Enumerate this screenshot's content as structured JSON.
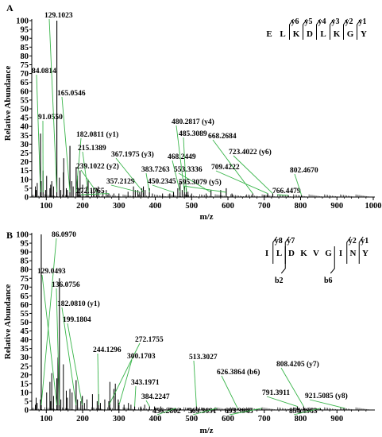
{
  "chart_data": [
    {
      "type": "bar",
      "panel": "A",
      "xlabel": "m/z",
      "ylabel": "Relative Abundance",
      "xlim": [
        60,
        1000
      ],
      "ylim": [
        0,
        100
      ],
      "xticks": [
        100,
        200,
        300,
        400,
        500,
        600,
        700,
        800,
        900,
        1000
      ],
      "yticks": [
        0,
        5,
        10,
        15,
        20,
        25,
        30,
        35,
        40,
        45,
        50,
        55,
        60,
        65,
        70,
        75,
        80,
        85,
        90,
        95,
        100
      ],
      "sequence": {
        "residues": [
          "E",
          "L",
          "K",
          "D",
          "L",
          "K",
          "G",
          "Y"
        ],
        "y_ions": [
          "y6",
          "y5",
          "y4",
          "y3",
          "y2",
          "y1"
        ],
        "b_ions": []
      },
      "peaks": [
        {
          "mz": 84.0814,
          "abundance": 36,
          "label": "84.0814"
        },
        {
          "mz": 91.055,
          "abundance": 15,
          "label": "91.0550"
        },
        {
          "mz": 129.1023,
          "abundance": 100,
          "label": "129.1023"
        },
        {
          "mz": 165.0546,
          "abundance": 29,
          "label": "165.0546"
        },
        {
          "mz": 182.0811,
          "abundance": 17,
          "label": "182.0811 (y1)"
        },
        {
          "mz": 215.1389,
          "abundance": 10,
          "label": "215.1389"
        },
        {
          "mz": 239.1022,
          "abundance": 5,
          "label": "239.1022 (y2)"
        },
        {
          "mz": 272.1765,
          "abundance": 2,
          "label": "272.1765"
        },
        {
          "mz": 357.2129,
          "abundance": 3,
          "label": "357.2129"
        },
        {
          "mz": 367.1975,
          "abundance": 6,
          "label": "367.1975 (y3)"
        },
        {
          "mz": 383.7263,
          "abundance": 5,
          "label": "383.7263"
        },
        {
          "mz": 450.2345,
          "abundance": 3,
          "label": "450.2345"
        },
        {
          "mz": 468.2449,
          "abundance": 9,
          "label": "468.2449"
        },
        {
          "mz": 480.2817,
          "abundance": 6,
          "label": "480.2817 (y4)"
        },
        {
          "mz": 485.3089,
          "abundance": 5,
          "label": "485.3089"
        },
        {
          "mz": 553.3336,
          "abundance": 4,
          "label": "553.3336"
        },
        {
          "mz": 595.3079,
          "abundance": 5,
          "label": "595.3079 (y5)"
        },
        {
          "mz": 668.2684,
          "abundance": 2,
          "label": "668.2684"
        },
        {
          "mz": 709.4222,
          "abundance": 2,
          "label": "709.4222"
        },
        {
          "mz": 723.4022,
          "abundance": 2,
          "label": "723.4022 (y6)"
        },
        {
          "mz": 766.4479,
          "abundance": 1,
          "label": "766.4479"
        },
        {
          "mz": 802.467,
          "abundance": 1,
          "label": "802.4670"
        }
      ],
      "minor_peaks": [
        {
          "mz": 70,
          "abundance": 6
        },
        {
          "mz": 72,
          "abundance": 4
        },
        {
          "mz": 75,
          "abundance": 8
        },
        {
          "mz": 86,
          "abundance": 9
        },
        {
          "mz": 98,
          "abundance": 4
        },
        {
          "mz": 101,
          "abundance": 12
        },
        {
          "mz": 110,
          "abundance": 5
        },
        {
          "mz": 112,
          "abundance": 7
        },
        {
          "mz": 115,
          "abundance": 9
        },
        {
          "mz": 120,
          "abundance": 6
        },
        {
          "mz": 136,
          "abundance": 11
        },
        {
          "mz": 140,
          "abundance": 4
        },
        {
          "mz": 147,
          "abundance": 14
        },
        {
          "mz": 148,
          "abundance": 22
        },
        {
          "mz": 155,
          "abundance": 5
        },
        {
          "mz": 158,
          "abundance": 4
        },
        {
          "mz": 170,
          "abundance": 9
        },
        {
          "mz": 174,
          "abundance": 6
        },
        {
          "mz": 186,
          "abundance": 12
        },
        {
          "mz": 189,
          "abundance": 5
        },
        {
          "mz": 193,
          "abundance": 15
        },
        {
          "mz": 200,
          "abundance": 7
        },
        {
          "mz": 211,
          "abundance": 6
        },
        {
          "mz": 225,
          "abundance": 4
        },
        {
          "mz": 230,
          "abundance": 5
        },
        {
          "mz": 243,
          "abundance": 6
        },
        {
          "mz": 256,
          "abundance": 3
        },
        {
          "mz": 265,
          "abundance": 4
        },
        {
          "mz": 286,
          "abundance": 2
        },
        {
          "mz": 300,
          "abundance": 2
        },
        {
          "mz": 325,
          "abundance": 3
        },
        {
          "mz": 340,
          "abundance": 6
        },
        {
          "mz": 345,
          "abundance": 4
        },
        {
          "mz": 352,
          "abundance": 4
        },
        {
          "mz": 363,
          "abundance": 5
        },
        {
          "mz": 372,
          "abundance": 4
        },
        {
          "mz": 392,
          "abundance": 2
        },
        {
          "mz": 420,
          "abundance": 2
        },
        {
          "mz": 440,
          "abundance": 2
        },
        {
          "mz": 462,
          "abundance": 5
        },
        {
          "mz": 474,
          "abundance": 4
        },
        {
          "mz": 490,
          "abundance": 3
        },
        {
          "mz": 500,
          "abundance": 2
        },
        {
          "mz": 540,
          "abundance": 2
        },
        {
          "mz": 580,
          "abundance": 4
        },
        {
          "mz": 611,
          "abundance": 2
        },
        {
          "mz": 650,
          "abundance": 1
        },
        {
          "mz": 700,
          "abundance": 1
        }
      ]
    },
    {
      "type": "bar",
      "panel": "B",
      "xlabel": "m/z",
      "ylabel": "Relative Abundance",
      "xlim": [
        60,
        1000
      ],
      "ylim": [
        0,
        100
      ],
      "xticks": [
        100,
        200,
        300,
        400,
        500,
        600,
        700,
        800,
        900
      ],
      "yticks": [
        0,
        5,
        10,
        15,
        20,
        25,
        30,
        35,
        40,
        45,
        50,
        55,
        60,
        65,
        70,
        75,
        80,
        85,
        90,
        95,
        100
      ],
      "sequence": {
        "residues": [
          "I",
          "L",
          "D",
          "K",
          "V",
          "G",
          "I",
          "N",
          "Y"
        ],
        "y_ions": [
          "y8",
          "y7",
          "y2",
          "y1"
        ],
        "b_ions": [
          "b2",
          "b6"
        ]
      },
      "peaks": [
        {
          "mz": 86.097,
          "abundance": 100,
          "label": "86.0970"
        },
        {
          "mz": 129.0493,
          "abundance": 18,
          "label": "129.0493"
        },
        {
          "mz": 136.0756,
          "abundance": 75,
          "label": "136.0756"
        },
        {
          "mz": 182.081,
          "abundance": 17,
          "label": "182.0810 (y1)"
        },
        {
          "mz": 199.1804,
          "abundance": 8,
          "label": "199.1804"
        },
        {
          "mz": 244.1296,
          "abundance": 9,
          "label": "244.1296"
        },
        {
          "mz": 272.1755,
          "abundance": 5,
          "label": "272.1755"
        },
        {
          "mz": 300.1703,
          "abundance": 4,
          "label": "300.1703"
        },
        {
          "mz": 343.1971,
          "abundance": 2,
          "label": "343.1971"
        },
        {
          "mz": 384.2247,
          "abundance": 2,
          "label": "384.2247"
        },
        {
          "mz": 456.2802,
          "abundance": 1,
          "label": "456.2802"
        },
        {
          "mz": 513.3027,
          "abundance": 2,
          "label": "513.3027"
        },
        {
          "mz": 569.3691,
          "abundance": 1,
          "label": "569.3691"
        },
        {
          "mz": 626.3864,
          "abundance": 1,
          "label": "626.3864 (b6)"
        },
        {
          "mz": 693.3945,
          "abundance": 1,
          "label": "693.3945"
        },
        {
          "mz": 791.3911,
          "abundance": 2,
          "label": "791.3911"
        },
        {
          "mz": 808.4205,
          "abundance": 2,
          "label": "808.4205 (y7)"
        },
        {
          "mz": 854.4963,
          "abundance": 1,
          "label": "854.4963"
        },
        {
          "mz": 921.5085,
          "abundance": 1,
          "label": "921.5085 (y8)"
        }
      ],
      "minor_peaks": [
        {
          "mz": 70,
          "abundance": 3
        },
        {
          "mz": 72,
          "abundance": 7
        },
        {
          "mz": 75,
          "abundance": 4
        },
        {
          "mz": 84,
          "abundance": 6
        },
        {
          "mz": 101,
          "abundance": 10
        },
        {
          "mz": 110,
          "abundance": 16
        },
        {
          "mz": 112,
          "abundance": 5
        },
        {
          "mz": 115,
          "abundance": 21
        },
        {
          "mz": 120,
          "abundance": 8
        },
        {
          "mz": 132,
          "abundance": 30
        },
        {
          "mz": 140,
          "abundance": 6
        },
        {
          "mz": 147,
          "abundance": 26
        },
        {
          "mz": 155,
          "abundance": 11
        },
        {
          "mz": 158,
          "abundance": 7
        },
        {
          "mz": 165,
          "abundance": 12
        },
        {
          "mz": 171,
          "abundance": 10
        },
        {
          "mz": 186,
          "abundance": 6
        },
        {
          "mz": 195,
          "abundance": 5
        },
        {
          "mz": 205,
          "abundance": 4
        },
        {
          "mz": 212,
          "abundance": 6
        },
        {
          "mz": 227,
          "abundance": 9
        },
        {
          "mz": 240,
          "abundance": 5
        },
        {
          "mz": 249,
          "abundance": 4
        },
        {
          "mz": 261,
          "abundance": 6
        },
        {
          "mz": 275,
          "abundance": 16
        },
        {
          "mz": 286,
          "abundance": 12
        },
        {
          "mz": 290,
          "abundance": 15
        },
        {
          "mz": 298,
          "abundance": 6
        },
        {
          "mz": 314,
          "abundance": 3
        },
        {
          "mz": 326,
          "abundance": 4
        },
        {
          "mz": 333,
          "abundance": 3
        },
        {
          "mz": 360,
          "abundance": 2
        },
        {
          "mz": 371,
          "abundance": 3
        },
        {
          "mz": 398,
          "abundance": 2
        },
        {
          "mz": 415,
          "abundance": 2
        },
        {
          "mz": 440,
          "abundance": 1
        },
        {
          "mz": 470,
          "abundance": 1
        },
        {
          "mz": 490,
          "abundance": 1
        },
        {
          "mz": 530,
          "abundance": 1
        },
        {
          "mz": 600,
          "abundance": 1
        },
        {
          "mz": 650,
          "abundance": 1
        }
      ]
    }
  ]
}
